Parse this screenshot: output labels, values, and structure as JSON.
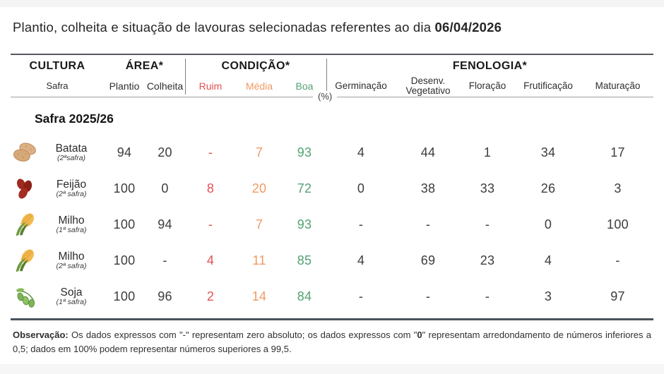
{
  "page": {
    "title_prefix": "Plantio, colheita e situação de lavouras selecionadas referentes ao dia ",
    "title_date": "06/04/2026"
  },
  "table": {
    "header": {
      "cultura": "CULTURA",
      "cultura_sub": "Safra",
      "area": "ÁREA*",
      "plantio": "Plantio",
      "colheita": "Colheita",
      "condicao": "CONDIÇÃO*",
      "ruim": "Ruim",
      "media": "Média",
      "boa": "Boa",
      "fenologia": "FENOLOGIA*",
      "germinacao": "Germinação",
      "desenv_line1": "Desenv.",
      "desenv_line2": "Vegetativo",
      "floracao": "Floração",
      "frutificacao": "Frutificação",
      "maturacao": "Maturação",
      "unit_label": "(%)"
    },
    "section": "Safra 2025/26",
    "rows": [
      {
        "icon": "potato-icon",
        "name": "Batata",
        "subtitle": "(2ªsafra)",
        "values": [
          "94",
          "20",
          "-",
          "7",
          "93",
          "4",
          "44",
          "1",
          "34",
          "17"
        ]
      },
      {
        "icon": "beans-icon",
        "name": "Feijão",
        "subtitle": "(2ª safra)",
        "values": [
          "100",
          "0",
          "8",
          "20",
          "72",
          "0",
          "38",
          "33",
          "26",
          "3"
        ]
      },
      {
        "icon": "corn-icon",
        "name": "Milho",
        "subtitle": "(1ª safra)",
        "values": [
          "100",
          "94",
          "-",
          "7",
          "93",
          "-",
          "-",
          "-",
          "0",
          "100"
        ]
      },
      {
        "icon": "corn-icon",
        "name": "Milho",
        "subtitle": "(2ª safra)",
        "values": [
          "100",
          "-",
          "4",
          "11",
          "85",
          "4",
          "69",
          "23",
          "4",
          "-"
        ]
      },
      {
        "icon": "soybean-icon",
        "name": "Soja",
        "subtitle": "(1ª safra)",
        "values": [
          "100",
          "96",
          "2",
          "14",
          "84",
          "-",
          "-",
          "-",
          "3",
          "97"
        ]
      }
    ]
  },
  "footnote": {
    "label": "Observação:",
    "part1": " Os dados expressos com \"-\" representam zero absoluto; os dados expressos com \"",
    "bold_zero": "0",
    "part2": "\" representam arredondamento de números inferiores a 0,5; dados em 100% podem representar números superiores a 99,5."
  },
  "colors": {
    "ruim": "#e25252",
    "media": "#f09a62",
    "boa": "#53a273"
  },
  "chart_data": {
    "type": "table",
    "title": "Plantio, colheita e situação de lavouras selecionadas referentes ao dia 06/04/2026",
    "unit": "%",
    "section": "Safra 2025/26",
    "columns": [
      "Cultura (Safra)",
      "Área Plantio",
      "Área Colheita",
      "Condição Ruim",
      "Condição Média",
      "Condição Boa",
      "Fenologia Germinação",
      "Fenologia Desenv. Vegetativo",
      "Fenologia Floração",
      "Fenologia Frutificação",
      "Fenologia Maturação"
    ],
    "rows": [
      [
        "Batata (2ªsafra)",
        94,
        20,
        "-",
        7,
        93,
        4,
        44,
        1,
        34,
        17
      ],
      [
        "Feijão (2ª safra)",
        100,
        0,
        8,
        20,
        72,
        0,
        38,
        33,
        26,
        3
      ],
      [
        "Milho (1ª safra)",
        100,
        94,
        "-",
        7,
        93,
        "-",
        "-",
        "-",
        0,
        100
      ],
      [
        "Milho (2ª safra)",
        100,
        "-",
        4,
        11,
        85,
        4,
        69,
        23,
        4,
        "-"
      ],
      [
        "Soja (1ª safra)",
        100,
        96,
        2,
        14,
        84,
        "-",
        "-",
        "-",
        3,
        97
      ]
    ],
    "notes": "\"-\" = zero absoluto; \"0\" = arredondamento de números inferiores a 0,5; 100% pode representar números superiores a 99,5"
  }
}
